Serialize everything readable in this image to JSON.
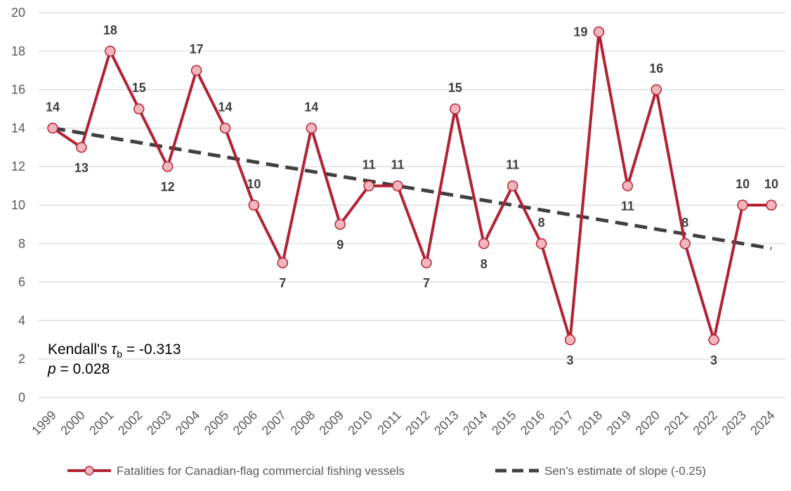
{
  "chart_data": {
    "type": "line",
    "x": [
      1999,
      2000,
      2001,
      2002,
      2003,
      2004,
      2005,
      2006,
      2007,
      2008,
      2009,
      2010,
      2011,
      2012,
      2013,
      2014,
      2015,
      2016,
      2017,
      2018,
      2019,
      2020,
      2021,
      2022,
      2023,
      2024
    ],
    "series": [
      {
        "name": "Fatalities for Canadian-flag commercial fishing vessels",
        "color": "#B22234",
        "marker_fill": "#F4B6BE",
        "values": [
          14,
          13,
          18,
          15,
          12,
          17,
          14,
          10,
          7,
          14,
          9,
          11,
          11,
          7,
          15,
          8,
          11,
          8,
          3,
          19,
          11,
          16,
          8,
          3,
          10,
          10
        ],
        "label_positions": [
          "above",
          "below",
          "above",
          "above",
          "below",
          "above",
          "above",
          "above",
          "below",
          "above",
          "below",
          "above",
          "above",
          "below",
          "above",
          "below",
          "above",
          "above",
          "below",
          "left",
          "below",
          "above",
          "above",
          "below",
          "above",
          "above"
        ]
      },
      {
        "name": "Sen's estimate of slope (-0.25)",
        "color": "#404040",
        "style": "dashed",
        "start": [
          1999,
          14
        ],
        "end": [
          2024,
          7.75
        ]
      }
    ],
    "ylim": [
      0,
      20
    ],
    "yticks": [
      0,
      2,
      4,
      6,
      8,
      10,
      12,
      14,
      16,
      18,
      20
    ],
    "grid": true,
    "legend": "bottom",
    "annotation": {
      "line1_prefix": "Kendall's ",
      "tau": "τ",
      "tau_sub": "b",
      "line1_suffix": " = -0.313",
      "p_label": "p",
      "p_value": " = 0.028"
    }
  }
}
